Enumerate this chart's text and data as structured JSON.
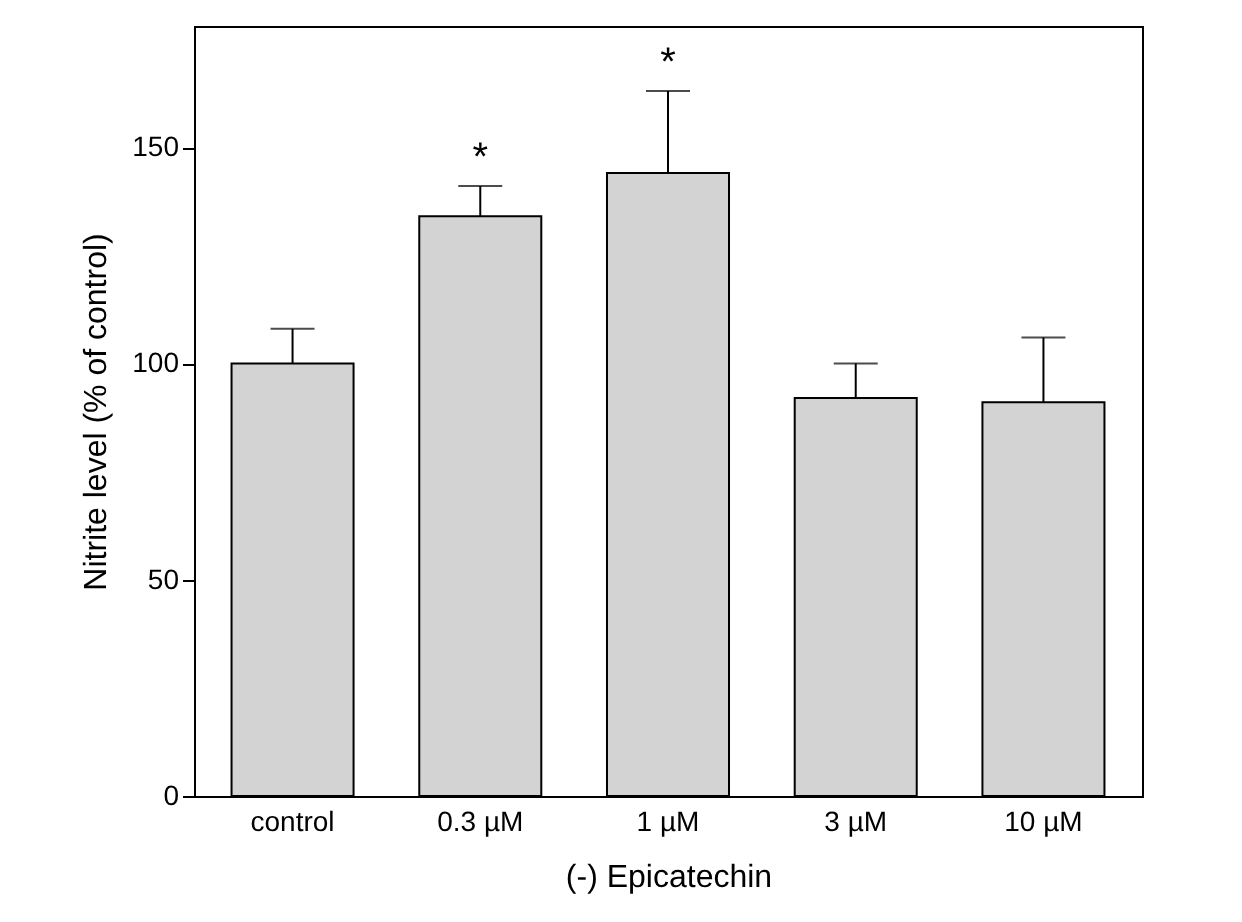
{
  "chart_data": {
    "type": "bar",
    "xlabel": "(-) Epicatechin",
    "ylabel": "Nitrite level (% of control)",
    "categories": [
      "control",
      "0.3 µM",
      "1 µM",
      "3 µM",
      "10 µM"
    ],
    "values": [
      100,
      134,
      144,
      92,
      91
    ],
    "errors": [
      [
        100,
        108
      ],
      [
        134,
        141
      ],
      [
        144,
        163
      ],
      [
        92,
        100
      ],
      [
        91,
        106
      ]
    ],
    "color": "#d3d3d3",
    "ylim": [
      0,
      178
    ],
    "yticks": [
      0,
      50,
      100,
      150
    ],
    "value_labels": [
      null,
      "*",
      "*",
      null,
      null
    ]
  }
}
